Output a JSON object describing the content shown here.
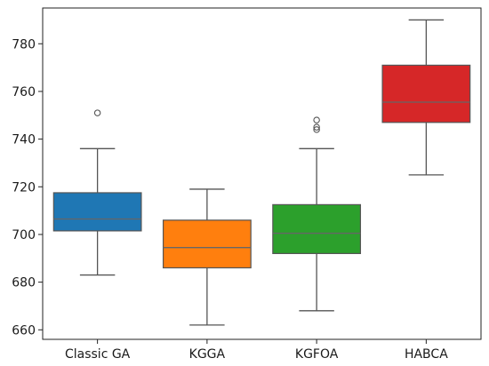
{
  "chart_data": {
    "type": "boxplot",
    "title": "",
    "xlabel": "",
    "ylabel": "",
    "ylim": [
      656,
      795
    ],
    "yticks": [
      660,
      680,
      700,
      720,
      740,
      760,
      780
    ],
    "grid": false,
    "legend": "none",
    "categories": [
      "Classic GA",
      "KGGA",
      "KGFOA",
      "HABCA"
    ],
    "series": [
      {
        "category": "Classic GA",
        "color": "#1f77b4",
        "whisker_low": 683,
        "q1": 701.5,
        "median": 706.5,
        "q3": 717.5,
        "whisker_high": 736,
        "outliers": [
          751
        ]
      },
      {
        "category": "KGGA",
        "color": "#ff7f0e",
        "whisker_low": 662,
        "q1": 686,
        "median": 694.5,
        "q3": 706,
        "whisker_high": 719,
        "outliers": []
      },
      {
        "category": "KGFOA",
        "color": "#2ca02c",
        "whisker_low": 668,
        "q1": 692,
        "median": 700.5,
        "q3": 712.5,
        "whisker_high": 736,
        "outliers": [
          744,
          745,
          748
        ]
      },
      {
        "category": "HABCA",
        "color": "#d62728",
        "whisker_low": 725,
        "q1": 747,
        "median": 755.5,
        "q3": 771,
        "whisker_high": 790,
        "outliers": []
      }
    ]
  }
}
